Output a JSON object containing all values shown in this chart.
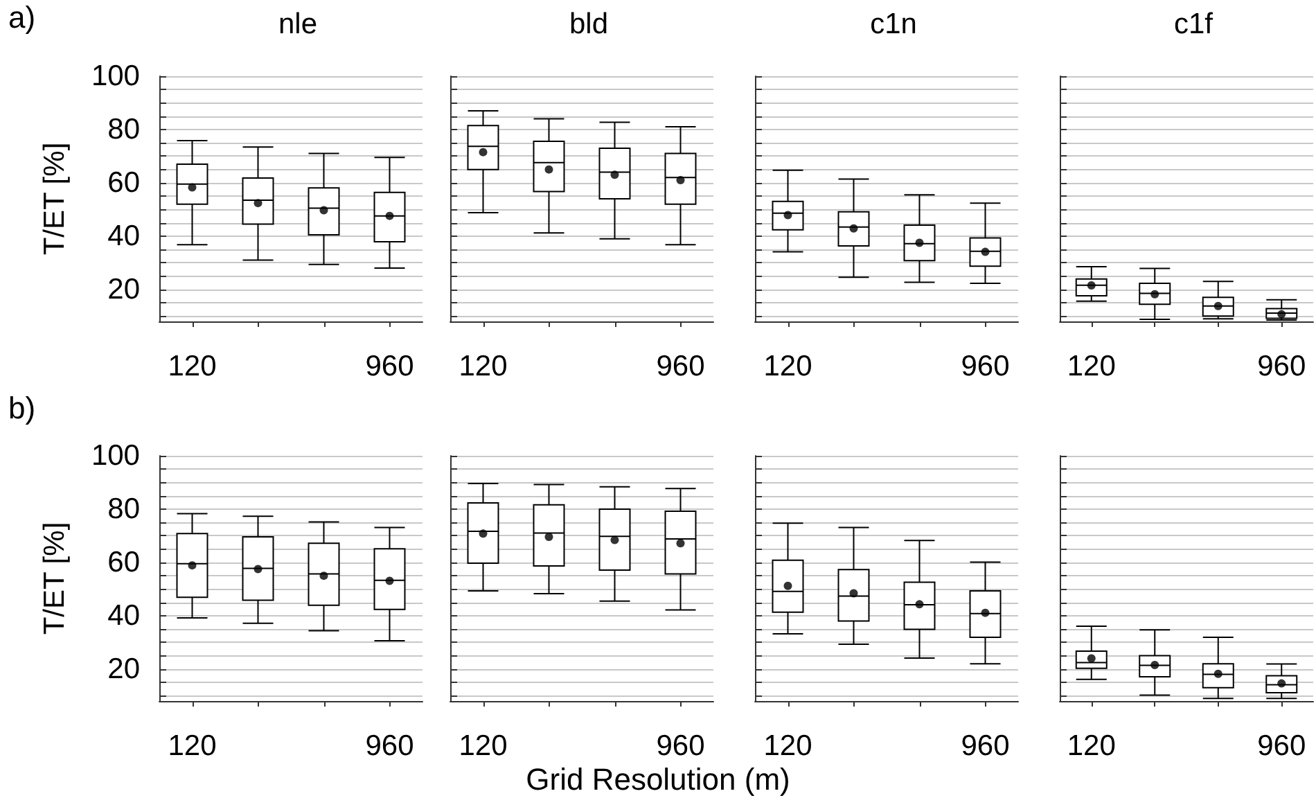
{
  "chart_data": [
    {
      "type": "box",
      "title": "nle",
      "ylabel": "T/ET [%]",
      "annotations": [
        "a)"
      ],
      "categories": [
        "120",
        null,
        null,
        "960"
      ],
      "ylim": [
        8,
        100
      ],
      "yticks": [
        {
          "value": 10,
          "label": null
        },
        {
          "value": 15,
          "label": null
        },
        20,
        {
          "value": 25,
          "label": null
        },
        {
          "value": 30,
          "label": null
        },
        {
          "value": 35,
          "label": null
        },
        40,
        {
          "value": 45,
          "label": null
        },
        {
          "value": 50,
          "label": null
        },
        {
          "value": 55,
          "label": null
        },
        60,
        {
          "value": 65,
          "label": null
        },
        {
          "value": 70,
          "label": null
        },
        {
          "value": 75,
          "label": null
        },
        80,
        {
          "value": 85,
          "label": null
        },
        {
          "value": 90,
          "label": null
        },
        {
          "value": 95,
          "label": null
        },
        100
      ],
      "grid": "y",
      "boxes": [
        {
          "low": 36.8,
          "q1": 52,
          "median": 59.5,
          "q3": 67,
          "high": 75.8,
          "mean": 58.3
        },
        {
          "low": 31,
          "q1": 44.5,
          "median": 53.5,
          "q3": 61.8,
          "high": 73.4,
          "mean": 52.4
        },
        {
          "low": 29.4,
          "q1": 40.5,
          "median": 50.5,
          "q3": 58.1,
          "high": 71,
          "mean": 49.7
        },
        {
          "low": 28,
          "q1": 37.9,
          "median": 47.6,
          "q3": 56.4,
          "high": 69.5,
          "mean": 47.6
        }
      ]
    },
    {
      "type": "box",
      "title": "bld",
      "categories": [
        "120",
        null,
        null,
        "960"
      ],
      "ylim": [
        8,
        100
      ],
      "yticks": [
        {
          "value": 10,
          "label": null
        },
        {
          "value": 15,
          "label": null
        },
        20,
        {
          "value": 25,
          "label": null
        },
        {
          "value": 30,
          "label": null
        },
        {
          "value": 35,
          "label": null
        },
        40,
        {
          "value": 45,
          "label": null
        },
        {
          "value": 50,
          "label": null
        },
        {
          "value": 55,
          "label": null
        },
        60,
        {
          "value": 65,
          "label": null
        },
        {
          "value": 70,
          "label": null
        },
        {
          "value": 75,
          "label": null
        },
        80,
        {
          "value": 85,
          "label": null
        },
        {
          "value": 90,
          "label": null
        },
        {
          "value": 95,
          "label": null
        },
        100
      ],
      "grid": "y",
      "tick_labels": "x",
      "boxes": [
        {
          "low": 48.8,
          "q1": 65,
          "median": 73.7,
          "q3": 81.5,
          "high": 87,
          "mean": 71.5
        },
        {
          "low": 41.2,
          "q1": 56.7,
          "median": 67.6,
          "q3": 75.6,
          "high": 84,
          "mean": 65
        },
        {
          "low": 39,
          "q1": 54,
          "median": 64,
          "q3": 73,
          "high": 82.7,
          "mean": 63
        },
        {
          "low": 36.8,
          "q1": 52,
          "median": 62,
          "q3": 71,
          "high": 81,
          "mean": 61
        }
      ]
    },
    {
      "type": "box",
      "title": "c1n",
      "categories": [
        "120",
        null,
        null,
        "960"
      ],
      "ylim": [
        8,
        100
      ],
      "yticks": [
        {
          "value": 10,
          "label": null
        },
        {
          "value": 15,
          "label": null
        },
        20,
        {
          "value": 25,
          "label": null
        },
        {
          "value": 30,
          "label": null
        },
        {
          "value": 35,
          "label": null
        },
        40,
        {
          "value": 45,
          "label": null
        },
        {
          "value": 50,
          "label": null
        },
        {
          "value": 55,
          "label": null
        },
        60,
        {
          "value": 65,
          "label": null
        },
        {
          "value": 70,
          "label": null
        },
        {
          "value": 75,
          "label": null
        },
        80,
        {
          "value": 85,
          "label": null
        },
        {
          "value": 90,
          "label": null
        },
        {
          "value": 95,
          "label": null
        },
        100
      ],
      "grid": "y",
      "tick_labels": "x",
      "boxes": [
        {
          "low": 34.1,
          "q1": 42.4,
          "median": 48.6,
          "q3": 53,
          "high": 64.7,
          "mean": 47.9
        },
        {
          "low": 24.6,
          "q1": 36.3,
          "median": 43.4,
          "q3": 49.1,
          "high": 61.4,
          "mean": 42.9
        },
        {
          "low": 22.7,
          "q1": 30.8,
          "median": 37.2,
          "q3": 44.1,
          "high": 55.5,
          "mean": 37.5
        },
        {
          "low": 22.3,
          "q1": 28.7,
          "median": 34.3,
          "q3": 39.3,
          "high": 52.4,
          "mean": 34.1
        }
      ]
    },
    {
      "type": "box",
      "title": "c1f",
      "categories": [
        "120",
        null,
        null,
        "960"
      ],
      "ylim": [
        8,
        100
      ],
      "yticks": [
        {
          "value": 10,
          "label": null
        },
        {
          "value": 15,
          "label": null
        },
        20,
        {
          "value": 25,
          "label": null
        },
        {
          "value": 30,
          "label": null
        },
        {
          "value": 35,
          "label": null
        },
        40,
        {
          "value": 45,
          "label": null
        },
        {
          "value": 50,
          "label": null
        },
        {
          "value": 55,
          "label": null
        },
        60,
        {
          "value": 65,
          "label": null
        },
        {
          "value": 70,
          "label": null
        },
        {
          "value": 75,
          "label": null
        },
        80,
        {
          "value": 85,
          "label": null
        },
        {
          "value": 90,
          "label": null
        },
        {
          "value": 95,
          "label": null
        },
        100
      ],
      "grid": "y",
      "tick_labels": "x",
      "boxes": [
        {
          "low": 15.6,
          "q1": 17.6,
          "median": 21.6,
          "q3": 23.9,
          "high": 28.5,
          "mean": 21.5
        },
        {
          "low": 8.8,
          "q1": 14.4,
          "median": 18.5,
          "q3": 22.3,
          "high": 27.9,
          "mean": 18.2
        },
        {
          "low": 9,
          "q1": 10,
          "median": 13.8,
          "q3": 17,
          "high": 23,
          "mean": 13.8
        },
        {
          "low": 8.5,
          "q1": 9.2,
          "median": 11.1,
          "q3": 12.8,
          "high": 16.1,
          "mean": 10.7
        }
      ]
    },
    {
      "type": "box",
      "ylabel": "T/ET [%]",
      "annotations": [
        "b)"
      ],
      "categories": [
        "120",
        null,
        null,
        "960"
      ],
      "ylim": [
        8,
        100
      ],
      "yticks": [
        {
          "value": 10,
          "label": null
        },
        {
          "value": 15,
          "label": null
        },
        20,
        {
          "value": 25,
          "label": null
        },
        {
          "value": 30,
          "label": null
        },
        {
          "value": 35,
          "label": null
        },
        40,
        {
          "value": 45,
          "label": null
        },
        {
          "value": 50,
          "label": null
        },
        {
          "value": 55,
          "label": null
        },
        60,
        {
          "value": 65,
          "label": null
        },
        {
          "value": 70,
          "label": null
        },
        {
          "value": 75,
          "label": null
        },
        80,
        {
          "value": 85,
          "label": null
        },
        {
          "value": 90,
          "label": null
        },
        {
          "value": 95,
          "label": null
        },
        100
      ],
      "grid": "y",
      "boxes": [
        {
          "low": 39.2,
          "q1": 46.9,
          "median": 59.5,
          "q3": 70.8,
          "high": 78.3,
          "mean": 58.9
        },
        {
          "low": 37.2,
          "q1": 45.8,
          "median": 57.8,
          "q3": 69.6,
          "high": 77.3,
          "mean": 57.5
        },
        {
          "low": 34.4,
          "q1": 43.9,
          "median": 55.7,
          "q3": 67.2,
          "high": 75.2,
          "mean": 55
        },
        {
          "low": 30.6,
          "q1": 42.4,
          "median": 53.3,
          "q3": 65.1,
          "high": 73.1,
          "mean": 53.1
        }
      ]
    },
    {
      "type": "box",
      "xlabel": "Grid Resolution (m)",
      "categories": [
        "120",
        null,
        null,
        "960"
      ],
      "ylim": [
        8,
        100
      ],
      "yticks": [
        {
          "value": 10,
          "label": null
        },
        {
          "value": 15,
          "label": null
        },
        20,
        {
          "value": 25,
          "label": null
        },
        {
          "value": 30,
          "label": null
        },
        {
          "value": 35,
          "label": null
        },
        40,
        {
          "value": 45,
          "label": null
        },
        {
          "value": 50,
          "label": null
        },
        {
          "value": 55,
          "label": null
        },
        60,
        {
          "value": 65,
          "label": null
        },
        {
          "value": 70,
          "label": null
        },
        {
          "value": 75,
          "label": null
        },
        80,
        {
          "value": 85,
          "label": null
        },
        {
          "value": 90,
          "label": null
        },
        {
          "value": 95,
          "label": null
        },
        100
      ],
      "grid": "y",
      "tick_labels": "x",
      "boxes": [
        {
          "low": 49.3,
          "q1": 59.7,
          "median": 71.7,
          "q3": 82.3,
          "high": 89.6,
          "mean": 70.8
        },
        {
          "low": 48.3,
          "q1": 58.7,
          "median": 71,
          "q3": 81.6,
          "high": 89.2,
          "mean": 69.6
        },
        {
          "low": 45.5,
          "q1": 57.1,
          "median": 69.8,
          "q3": 80,
          "high": 88.4,
          "mean": 68.4
        },
        {
          "low": 42.2,
          "q1": 55.7,
          "median": 68.8,
          "q3": 79.2,
          "high": 87.7,
          "mean": 67.2
        }
      ]
    },
    {
      "type": "box",
      "categories": [
        "120",
        null,
        null,
        "960"
      ],
      "ylim": [
        8,
        100
      ],
      "yticks": [
        {
          "value": 10,
          "label": null
        },
        {
          "value": 15,
          "label": null
        },
        20,
        {
          "value": 25,
          "label": null
        },
        {
          "value": 30,
          "label": null
        },
        {
          "value": 35,
          "label": null
        },
        40,
        {
          "value": 45,
          "label": null
        },
        {
          "value": 50,
          "label": null
        },
        {
          "value": 55,
          "label": null
        },
        60,
        {
          "value": 65,
          "label": null
        },
        {
          "value": 70,
          "label": null
        },
        {
          "value": 75,
          "label": null
        },
        80,
        {
          "value": 85,
          "label": null
        },
        {
          "value": 90,
          "label": null
        },
        {
          "value": 95,
          "label": null
        },
        100
      ],
      "grid": "y",
      "tick_labels": "x",
      "boxes": [
        {
          "low": 33.2,
          "q1": 41.3,
          "median": 49.1,
          "q3": 60.8,
          "high": 74.7,
          "mean": 51.2
        },
        {
          "low": 29.3,
          "q1": 38,
          "median": 47.4,
          "q3": 57.3,
          "high": 73.1,
          "mean": 48.4
        },
        {
          "low": 24.1,
          "q1": 34.9,
          "median": 44.1,
          "q3": 52.6,
          "high": 68.2,
          "mean": 44.3
        },
        {
          "low": 22,
          "q1": 31.9,
          "median": 40.8,
          "q3": 49.3,
          "high": 60.1,
          "mean": 41.1
        }
      ]
    },
    {
      "type": "box",
      "categories": [
        "120",
        null,
        null,
        "960"
      ],
      "ylim": [
        8,
        100
      ],
      "yticks": [
        {
          "value": 10,
          "label": null
        },
        {
          "value": 15,
          "label": null
        },
        20,
        {
          "value": 25,
          "label": null
        },
        {
          "value": 30,
          "label": null
        },
        {
          "value": 35,
          "label": null
        },
        40,
        {
          "value": 45,
          "label": null
        },
        {
          "value": 50,
          "label": null
        },
        {
          "value": 55,
          "label": null
        },
        60,
        {
          "value": 65,
          "label": null
        },
        {
          "value": 70,
          "label": null
        },
        {
          "value": 75,
          "label": null
        },
        80,
        {
          "value": 85,
          "label": null
        },
        {
          "value": 90,
          "label": null
        },
        {
          "value": 95,
          "label": null
        },
        100
      ],
      "grid": "y",
      "tick_labels": "x",
      "boxes": [
        {
          "low": 16.1,
          "q1": 20.3,
          "median": 22.4,
          "q3": 26.7,
          "high": 36.1,
          "mean": 24
        },
        {
          "low": 10.2,
          "q1": 17.1,
          "median": 21.4,
          "q3": 25,
          "high": 34.7,
          "mean": 21.5
        },
        {
          "low": 9,
          "q1": 13,
          "median": 18,
          "q3": 22,
          "high": 31.9,
          "mean": 18.2
        },
        {
          "low": 9,
          "q1": 11.1,
          "median": 14.1,
          "q3": 17.5,
          "high": 21.9,
          "mean": 14.6
        }
      ]
    }
  ]
}
